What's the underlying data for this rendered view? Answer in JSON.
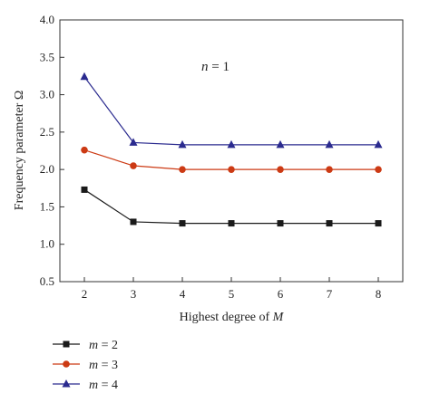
{
  "chart_data": {
    "type": "line",
    "title": "",
    "xlabel": {
      "text": "Highest degree of ",
      "italic": "M"
    },
    "ylabel": "Frequency parameter Ω",
    "x": [
      2,
      3,
      4,
      5,
      6,
      7,
      8
    ],
    "xlim": [
      1.5,
      8.5
    ],
    "ylim": [
      0.5,
      4.0
    ],
    "xticks": [
      "2",
      "3",
      "4",
      "5",
      "6",
      "7",
      "8"
    ],
    "yticks": [
      "0.5",
      "1.0",
      "1.5",
      "2.0",
      "2.5",
      "3.0",
      "3.5",
      "4.0"
    ],
    "annotation": {
      "italic": "n",
      "rest": " = 1"
    },
    "grid": false,
    "legend_position": "below-left",
    "series": [
      {
        "name": "m = 2",
        "name_italic": "m",
        "name_rest": " = 2",
        "color": "#1a1a1a",
        "marker": "square",
        "values": [
          1.73,
          1.3,
          1.28,
          1.28,
          1.28,
          1.28,
          1.28
        ]
      },
      {
        "name": "m = 3",
        "name_italic": "m",
        "name_rest": " = 3",
        "color": "#cc3a14",
        "marker": "circle",
        "values": [
          2.26,
          2.05,
          2.0,
          2.0,
          2.0,
          2.0,
          2.0
        ]
      },
      {
        "name": "m = 4",
        "name_italic": "m",
        "name_rest": " = 4",
        "color": "#2b2b8f",
        "marker": "triangle",
        "values": [
          3.24,
          2.36,
          2.33,
          2.33,
          2.33,
          2.33,
          2.33
        ]
      }
    ]
  }
}
